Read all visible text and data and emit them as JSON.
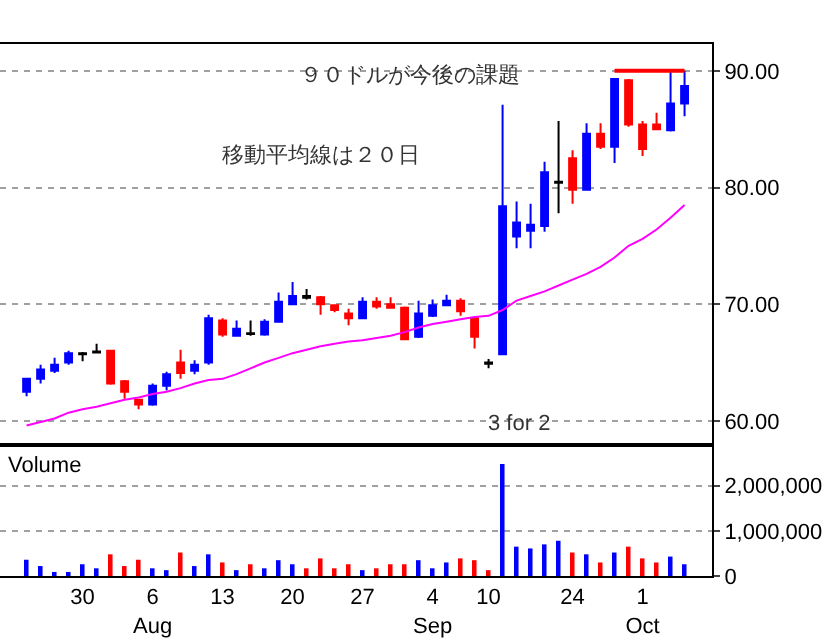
{
  "chart_data": [
    {
      "type": "candlestick",
      "categories": [
        null,
        null,
        null,
        null,
        null,
        null,
        null,
        null,
        null,
        null,
        null,
        null,
        null,
        null,
        null,
        null,
        null,
        null,
        null,
        null,
        null,
        null,
        null,
        null,
        null,
        null,
        null,
        null,
        null,
        null,
        null,
        null,
        null,
        null,
        null,
        null,
        null,
        null,
        null,
        null,
        null,
        null,
        null,
        null,
        null,
        null,
        null,
        null
      ],
      "ohlc": [
        [
          62.5,
          63.7,
          62.1,
          63.6
        ],
        [
          63.6,
          64.8,
          63.2,
          64.4
        ],
        [
          64.3,
          65.4,
          64.1,
          64.8
        ],
        [
          65.0,
          66.0,
          64.8,
          65.8
        ],
        [
          65.7,
          65.9,
          65.1,
          65.8
        ],
        [
          65.85,
          66.6,
          65.8,
          65.95
        ],
        [
          66.0,
          66.1,
          63.1,
          63.2
        ],
        [
          63.4,
          63.5,
          61.9,
          62.5
        ],
        [
          61.8,
          61.9,
          61.0,
          61.4
        ],
        [
          61.4,
          63.2,
          61.3,
          63.0
        ],
        [
          63.0,
          64.2,
          62.6,
          64.0
        ],
        [
          65.0,
          66.1,
          63.6,
          64.1
        ],
        [
          64.3,
          65.2,
          64.0,
          64.8
        ],
        [
          65.0,
          69.1,
          64.8,
          68.8
        ],
        [
          68.6,
          68.8,
          67.2,
          67.4
        ],
        [
          67.3,
          68.6,
          67.2,
          67.9
        ],
        [
          67.45,
          68.6,
          67.3,
          67.5
        ],
        [
          67.4,
          68.7,
          67.3,
          68.5
        ],
        [
          68.5,
          71.0,
          68.4,
          70.2
        ],
        [
          70.0,
          71.9,
          70.0,
          70.7
        ],
        [
          70.55,
          71.3,
          70.4,
          70.7
        ],
        [
          70.6,
          70.7,
          69.1,
          70.0
        ],
        [
          69.9,
          70.0,
          69.3,
          69.5
        ],
        [
          69.2,
          69.6,
          68.2,
          68.8
        ],
        [
          68.8,
          70.6,
          68.7,
          70.2
        ],
        [
          70.2,
          70.6,
          69.6,
          69.8
        ],
        [
          70.0,
          70.6,
          69.6,
          69.7
        ],
        [
          69.7,
          69.8,
          66.9,
          67.0
        ],
        [
          67.2,
          70.3,
          67.1,
          69.2
        ],
        [
          69.0,
          70.4,
          68.9,
          69.9
        ],
        [
          69.9,
          70.8,
          69.9,
          70.3
        ],
        [
          70.3,
          70.5,
          69.0,
          69.4
        ],
        [
          68.8,
          68.8,
          66.2,
          67.2
        ],
        [
          64.9,
          65.3,
          64.5,
          65.0
        ],
        [
          65.7,
          87.1,
          65.7,
          78.4
        ],
        [
          75.8,
          78.8,
          74.8,
          77.0
        ],
        [
          76.3,
          78.6,
          74.8,
          76.8
        ],
        [
          76.7,
          82.2,
          76.2,
          81.3
        ],
        [
          80.4,
          85.7,
          77.8,
          80.5
        ],
        [
          82.5,
          83.2,
          78.6,
          79.8
        ],
        [
          79.8,
          85.5,
          79.8,
          84.6
        ],
        [
          84.6,
          85.5,
          83.3,
          83.5
        ],
        [
          83.5,
          89.3,
          82.1,
          89.3
        ],
        [
          89.2,
          89.3,
          85.2,
          85.4
        ],
        [
          85.4,
          85.7,
          82.7,
          83.3
        ],
        [
          85.4,
          86.4,
          84.9,
          85.0
        ],
        [
          84.9,
          90.0,
          84.8,
          87.2
        ],
        [
          87.2,
          90.0,
          86.1,
          88.7
        ]
      ],
      "colors": [
        "#0000ff",
        "#0000ff",
        "#0000ff",
        "#0000ff",
        "#000000",
        "#000000",
        "#ff0000",
        "#ff0000",
        "#ff0000",
        "#0000ff",
        "#0000ff",
        "#ff0000",
        "#0000ff",
        "#0000ff",
        "#ff0000",
        "#0000ff",
        "#000000",
        "#0000ff",
        "#0000ff",
        "#0000ff",
        "#000000",
        "#ff0000",
        "#ff0000",
        "#ff0000",
        "#0000ff",
        "#ff0000",
        "#ff0000",
        "#ff0000",
        "#0000ff",
        "#0000ff",
        "#0000ff",
        "#ff0000",
        "#ff0000",
        "#000000",
        "#0000ff",
        "#0000ff",
        "#0000ff",
        "#0000ff",
        "#000000",
        "#ff0000",
        "#0000ff",
        "#ff0000",
        "#0000ff",
        "#ff0000",
        "#ff0000",
        "#ff0000",
        "#0000ff",
        "#0000ff"
      ],
      "series": [
        {
          "type": "line",
          "color": "#ff00ff",
          "values": [
            59.6,
            59.9,
            60.2,
            60.7,
            61.0,
            61.2,
            61.5,
            61.8,
            62.0,
            62.3,
            62.5,
            62.8,
            63.2,
            63.5,
            63.6,
            64.0,
            64.5,
            65.0,
            65.4,
            65.8,
            66.1,
            66.4,
            66.6,
            66.8,
            66.9,
            67.1,
            67.3,
            67.6,
            68.0,
            68.3,
            68.5,
            68.7,
            68.9,
            69.0,
            69.5,
            70.3,
            70.7,
            71.1,
            71.6,
            72.1,
            72.6,
            73.2,
            74.0,
            75.0,
            75.6,
            76.4,
            77.4,
            78.5
          ]
        },
        {
          "type": "line",
          "color": "#ff0000",
          "values": [
            null,
            null,
            null,
            null,
            null,
            null,
            null,
            null,
            null,
            null,
            null,
            null,
            null,
            null,
            null,
            null,
            null,
            null,
            null,
            null,
            null,
            null,
            null,
            null,
            null,
            null,
            null,
            null,
            null,
            null,
            null,
            null,
            null,
            null,
            null,
            null,
            null,
            null,
            null,
            null,
            null,
            null,
            90,
            90,
            90,
            90,
            90,
            90
          ]
        }
      ],
      "ylim": [
        58.1,
        92.3
      ],
      "yticks": [
        {
          "value": 60,
          "label": "60.00"
        },
        {
          "value": 70,
          "label": "70.00"
        },
        {
          "value": 80,
          "label": "80.00"
        },
        {
          "value": 90,
          "label": "90.00"
        }
      ],
      "grid": "y",
      "annotations": [
        "９０ドルが今後の課題",
        "移動平均線は２０日",
        "3 for 2"
      ]
    },
    {
      "type": "bar",
      "title": "Volume",
      "categories": [
        null,
        null,
        null,
        null,
        "30",
        null,
        null,
        null,
        null,
        "6\nAug",
        null,
        null,
        null,
        null,
        "13",
        null,
        null,
        null,
        null,
        "20",
        null,
        null,
        null,
        null,
        "27",
        null,
        null,
        null,
        null,
        "4\nSep",
        null,
        null,
        null,
        "10",
        null,
        null,
        null,
        null,
        null,
        "24",
        null,
        null,
        null,
        null,
        "1\nOct",
        null,
        null,
        null
      ],
      "values": [
        360000,
        220000,
        90000,
        90000,
        260000,
        170000,
        480000,
        220000,
        360000,
        170000,
        130000,
        520000,
        220000,
        480000,
        300000,
        130000,
        260000,
        170000,
        350000,
        260000,
        170000,
        390000,
        170000,
        260000,
        130000,
        170000,
        260000,
        260000,
        350000,
        170000,
        300000,
        390000,
        350000,
        130000,
        2480000,
        650000,
        610000,
        700000,
        780000,
        520000,
        480000,
        300000,
        520000,
        650000,
        390000,
        300000,
        430000,
        260000
      ],
      "colors": [
        "#0000ff",
        "#0000ff",
        "#0000ff",
        "#0000ff",
        "#0000ff",
        "#0000ff",
        "#ff0000",
        "#ff0000",
        "#ff0000",
        "#0000ff",
        "#0000ff",
        "#ff0000",
        "#0000ff",
        "#0000ff",
        "#ff0000",
        "#0000ff",
        "#ff0000",
        "#0000ff",
        "#0000ff",
        "#0000ff",
        "#ff0000",
        "#ff0000",
        "#ff0000",
        "#ff0000",
        "#0000ff",
        "#ff0000",
        "#ff0000",
        "#ff0000",
        "#0000ff",
        "#0000ff",
        "#0000ff",
        "#ff0000",
        "#ff0000",
        "#ff0000",
        "#0000ff",
        "#0000ff",
        "#0000ff",
        "#0000ff",
        "#0000ff",
        "#ff0000",
        "#0000ff",
        "#ff0000",
        "#0000ff",
        "#ff0000",
        "#ff0000",
        "#ff0000",
        "#0000ff",
        "#0000ff"
      ],
      "ylim": [
        0,
        2850000
      ],
      "yticks": [
        0,
        {
          "value": 1000000,
          "label": "1,000,000"
        },
        {
          "value": 2000000,
          "label": "2,000,000"
        }
      ],
      "grid": "y"
    }
  ]
}
